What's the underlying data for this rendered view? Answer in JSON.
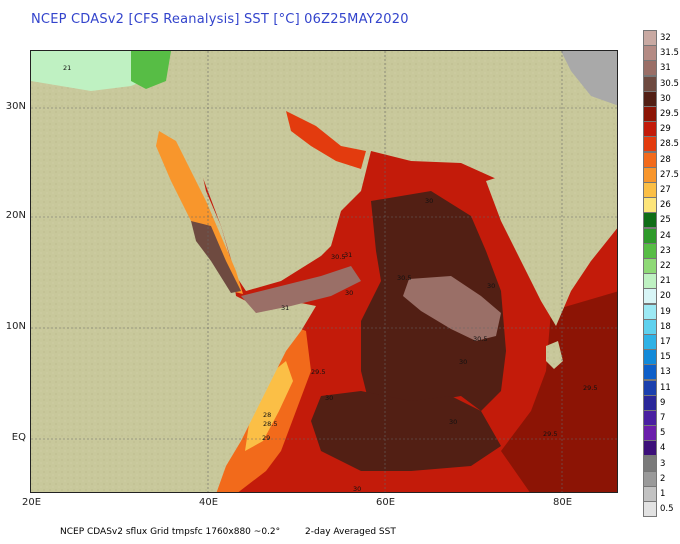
{
  "title": "NCEP CDASv2 [CFS Reanalysis] SST [°C] 06Z25MAY2020",
  "footer": {
    "left": "NCEP CDASv2 sflux Grid tmpsfc 1760x880 ~0.2°",
    "right": "2-day Averaged SST"
  },
  "axes": {
    "lat_labels": [
      "30N",
      "20N",
      "10N",
      "EQ"
    ],
    "lon_labels": [
      "20E",
      "40E",
      "60E",
      "80E"
    ]
  },
  "legend": [
    {
      "label": "32",
      "color": "#c9aaa3"
    },
    {
      "label": "31.5",
      "color": "#b48b84"
    },
    {
      "label": "31",
      "color": "#9a6f67"
    },
    {
      "label": "30.5",
      "color": "#6e4a40"
    },
    {
      "label": "30",
      "color": "#521f14"
    },
    {
      "label": "29.5",
      "color": "#8c1405"
    },
    {
      "label": "29",
      "color": "#c31b0a"
    },
    {
      "label": "28.5",
      "color": "#e33b0e"
    },
    {
      "label": "28",
      "color": "#f26a1b"
    },
    {
      "label": "27.5",
      "color": "#f8962c"
    },
    {
      "label": "27",
      "color": "#fbbf46"
    },
    {
      "label": "26",
      "color": "#fde57a"
    },
    {
      "label": "25",
      "color": "#0f6d16"
    },
    {
      "label": "24",
      "color": "#2e9a2a"
    },
    {
      "label": "23",
      "color": "#57bd45"
    },
    {
      "label": "22",
      "color": "#8fd977"
    },
    {
      "label": "21",
      "color": "#bff1c2"
    },
    {
      "label": "20",
      "color": "#d8f5f6"
    },
    {
      "label": "19",
      "color": "#9ce9f4"
    },
    {
      "label": "18",
      "color": "#5fd1ee"
    },
    {
      "label": "17",
      "color": "#2eb2e6"
    },
    {
      "label": "15",
      "color": "#128ad9"
    },
    {
      "label": "13",
      "color": "#0d5fc9"
    },
    {
      "label": "11",
      "color": "#1a3fae"
    },
    {
      "label": "9",
      "color": "#2a2699"
    },
    {
      "label": "7",
      "color": "#4a1fa2"
    },
    {
      "label": "5",
      "color": "#6b1eab"
    },
    {
      "label": "4",
      "color": "#3c0f7a"
    },
    {
      "label": "3",
      "color": "#7a7a7a"
    },
    {
      "label": "2",
      "color": "#9a9a9a"
    },
    {
      "label": "1",
      "color": "#c2c2c2"
    },
    {
      "label": "0.5",
      "color": "#e2e2e2"
    }
  ],
  "contour_labels": [
    "21",
    "30",
    "30.5",
    "31",
    "30",
    "30.5",
    "30",
    "29.5",
    "30",
    "28",
    "28.5",
    "29",
    "30",
    "29.5",
    "29.5",
    "30",
    "30.5",
    "31",
    "30"
  ]
}
